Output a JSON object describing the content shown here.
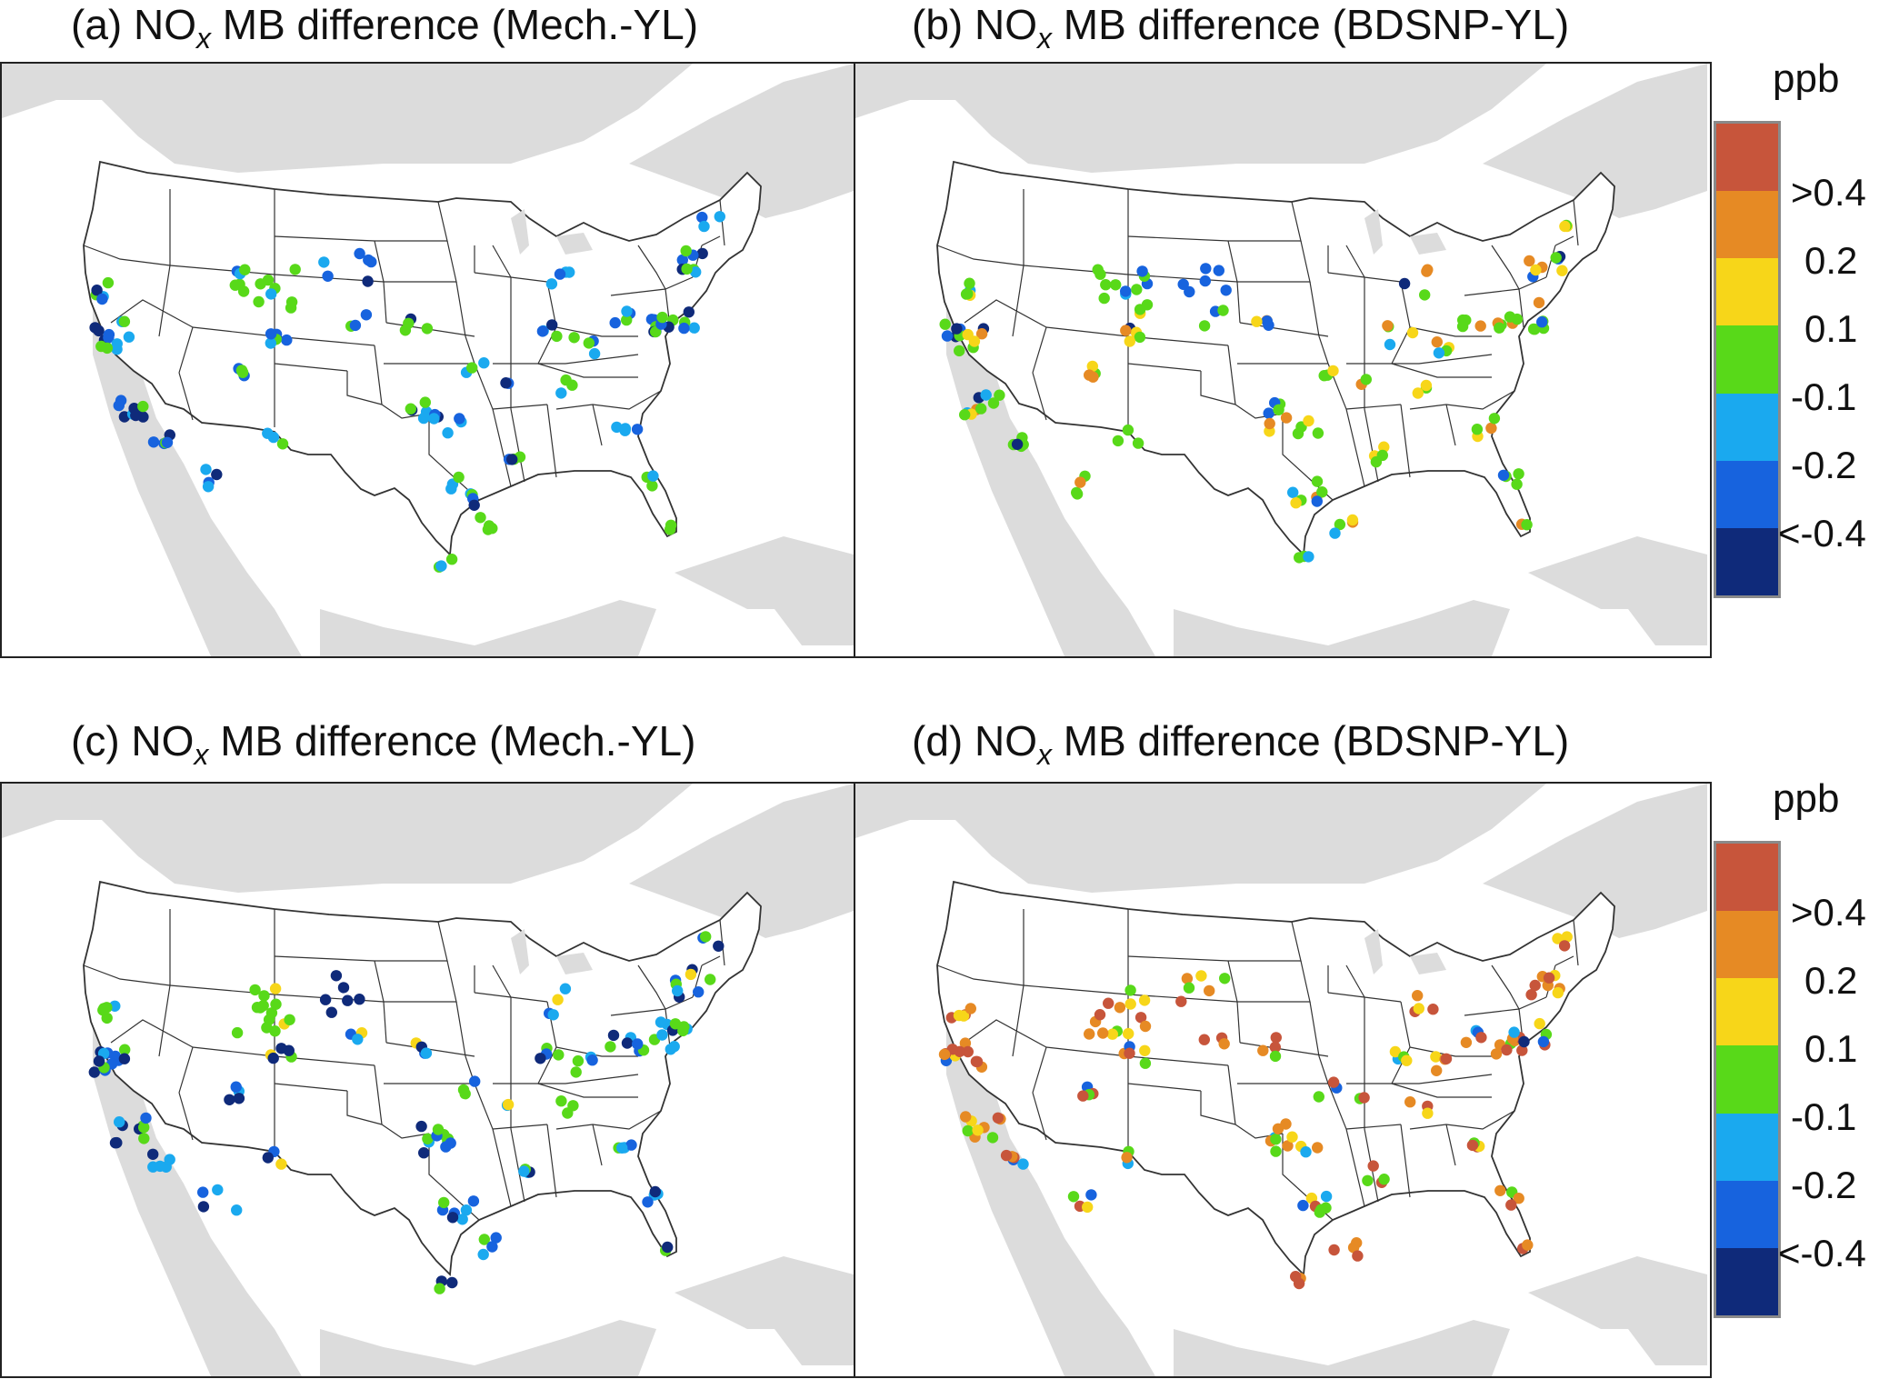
{
  "panels": [
    {
      "id": "a",
      "prefix": "(a) NO",
      "sub": "x",
      "suffix": " MB difference (Mech.-YL)"
    },
    {
      "id": "b",
      "prefix": "(b) NO",
      "sub": "x",
      "suffix": " MB difference (BDSNP-YL)"
    },
    {
      "id": "c",
      "prefix": "(c) NO",
      "sub": "x",
      "suffix": " MB difference (Mech.-YL)"
    },
    {
      "id": "d",
      "prefix": "(d) NO",
      "sub": "x",
      "suffix": " MB difference (BDSNP-YL)"
    }
  ],
  "colorbar": {
    "unit": "ppb",
    "labels": [
      ">0.4",
      "0.2",
      "0.1",
      "-0.1",
      "-0.2",
      "<-0.4"
    ],
    "colors": [
      "#c7553b",
      "#e68a24",
      "#f7d619",
      "#58d919",
      "#1aa9ef",
      "#1763de",
      "#0f2a7a"
    ]
  },
  "map_colors": {
    "land_outside": "#dcdcdc",
    "conus": "#ffffff",
    "borders": "#333333"
  },
  "legend_icon": "colorbar-icon"
}
